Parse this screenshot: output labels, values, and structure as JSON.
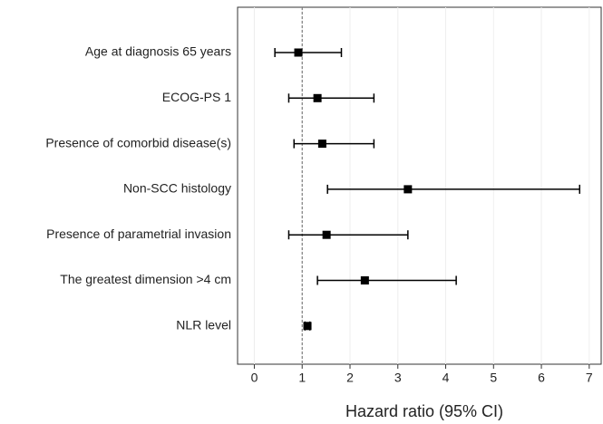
{
  "chart_data": {
    "type": "forest",
    "xlabel": "Hazard ratio (95% CI)",
    "categories": [
      "Age at diagnosis 65 years",
      "ECOG-PS 1",
      "Presence of comorbid disease(s)",
      "Non-SCC histology",
      "Presence of parametrial invasion",
      "The greatest dimension >4 cm",
      "NLR level"
    ],
    "values": [
      0.92,
      1.32,
      1.42,
      3.21,
      1.51,
      2.31,
      1.11
    ],
    "lower": [
      0.43,
      0.72,
      0.83,
      1.53,
      0.72,
      1.32,
      1.06
    ],
    "upper": [
      1.82,
      2.5,
      2.5,
      6.8,
      3.21,
      4.22,
      1.16
    ],
    "color": "#000000",
    "xlim": [
      -0.35,
      7.25
    ],
    "xticks": [
      0,
      1,
      2,
      3,
      4,
      5,
      6,
      7
    ],
    "reference": 1,
    "grid": true
  }
}
